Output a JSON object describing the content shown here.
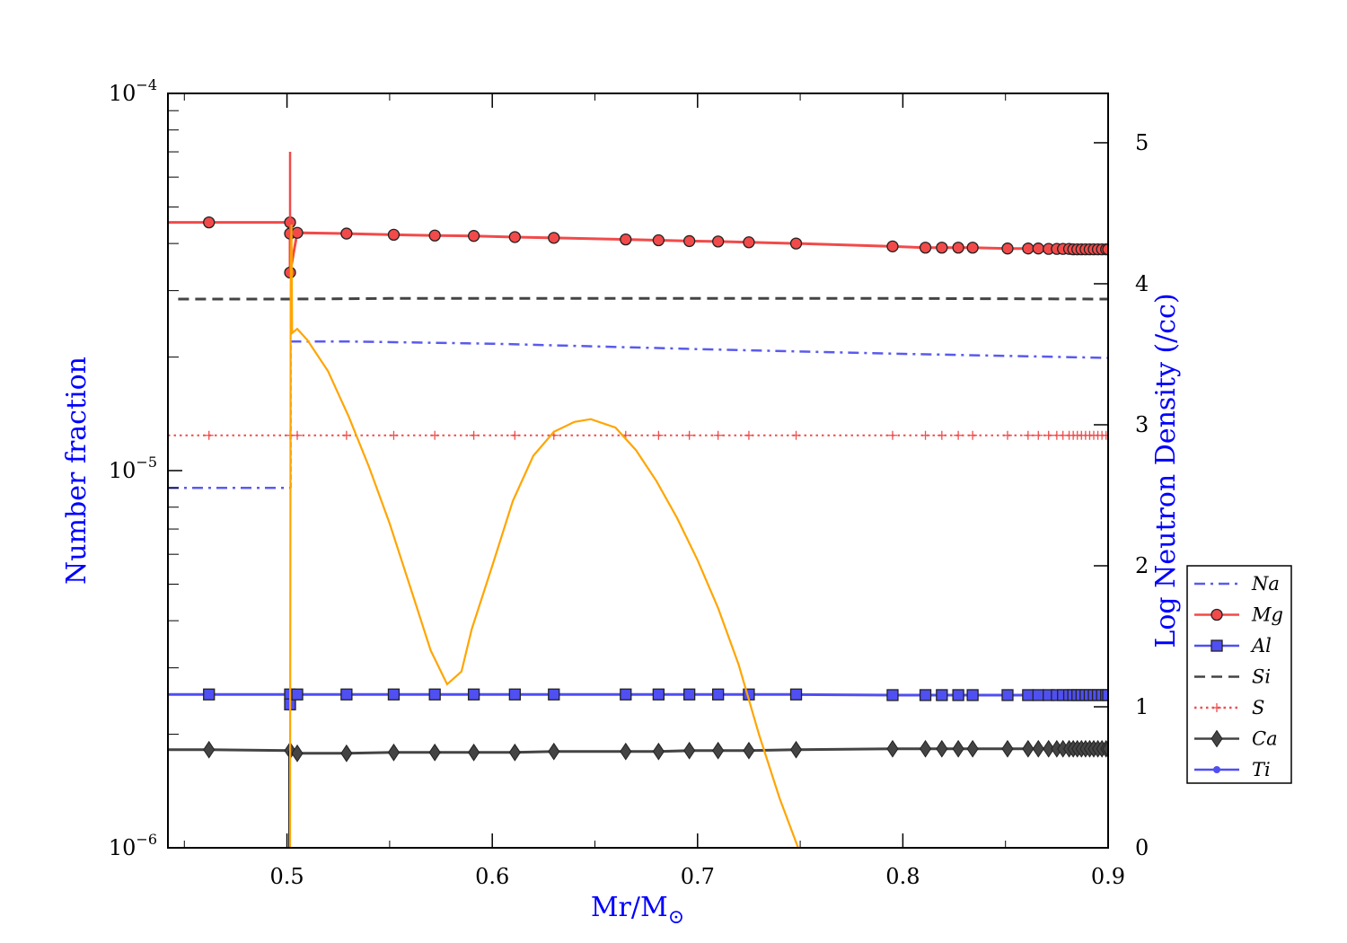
{
  "chart_data": {
    "type": "line",
    "xlabel": "Mr/M",
    "xlabel_symbol": "⊙",
    "ylabel": "Number fraction",
    "y2label": "Log Neutron Density (/cc)",
    "xlim": [
      0.442,
      0.9
    ],
    "ylim": [
      1e-06,
      0.0001
    ],
    "y_scale": "log",
    "y2lim": [
      0,
      5.35
    ],
    "x_ticks": [
      "0.5",
      "0.6",
      "0.7",
      "0.8",
      "0.9"
    ],
    "y_ticks": [
      {
        "base": "10",
        "exp": "−4"
      },
      {
        "base": "10",
        "exp": "−5"
      },
      {
        "base": "10",
        "exp": "−6"
      }
    ],
    "y2_ticks": [
      "0",
      "1",
      "2",
      "3",
      "4",
      "5"
    ],
    "grid": false,
    "legend_position": "right",
    "colors": {
      "red": "#f24a4a",
      "blue": "#4f4ff2",
      "gray": "#444444",
      "orange": "#ffa500",
      "label_blue": "#0000ff"
    },
    "series": [
      {
        "name": "Na",
        "style": "dashdot",
        "color": "#5a5aee",
        "segments": [
          [
            [
              0.442,
              9e-06
            ],
            [
              0.5015,
              9e-06
            ]
          ],
          [
            [
              0.5017,
              2.2e-05
            ],
            [
              0.53,
              2.2e-05
            ],
            [
              0.6,
              2.17e-05
            ],
            [
              0.7,
              2.1e-05
            ],
            [
              0.8,
              2.04e-05
            ],
            [
              0.9,
              1.99e-05
            ]
          ]
        ]
      },
      {
        "name": "Mg",
        "style": "solid-circle",
        "color": "#f24a4a",
        "points": [
          [
            0.442,
            4.55e-05
          ],
          [
            0.462,
            4.55e-05
          ],
          [
            0.5015,
            4.55e-05
          ],
          [
            0.5015,
            4.25e-05
          ],
          [
            0.5015,
            3.35e-05
          ],
          [
            0.505,
            4.27e-05
          ],
          [
            0.529,
            4.25e-05
          ],
          [
            0.552,
            4.22e-05
          ],
          [
            0.572,
            4.2e-05
          ],
          [
            0.591,
            4.19e-05
          ],
          [
            0.611,
            4.16e-05
          ],
          [
            0.63,
            4.14e-05
          ],
          [
            0.665,
            4.1e-05
          ],
          [
            0.681,
            4.08e-05
          ],
          [
            0.696,
            4.06e-05
          ],
          [
            0.71,
            4.05e-05
          ],
          [
            0.725,
            4.03e-05
          ],
          [
            0.748,
            4e-05
          ],
          [
            0.795,
            3.93e-05
          ],
          [
            0.811,
            3.9e-05
          ],
          [
            0.819,
            3.9e-05
          ],
          [
            0.827,
            3.9e-05
          ],
          [
            0.834,
            3.9e-05
          ],
          [
            0.851,
            3.88e-05
          ],
          [
            0.861,
            3.88e-05
          ],
          [
            0.866,
            3.88e-05
          ],
          [
            0.871,
            3.87e-05
          ],
          [
            0.875,
            3.87e-05
          ],
          [
            0.878,
            3.87e-05
          ],
          [
            0.881,
            3.87e-05
          ],
          [
            0.883,
            3.86e-05
          ],
          [
            0.885,
            3.86e-05
          ],
          [
            0.887,
            3.86e-05
          ],
          [
            0.889,
            3.86e-05
          ],
          [
            0.891,
            3.86e-05
          ],
          [
            0.893,
            3.86e-05
          ],
          [
            0.895,
            3.86e-05
          ],
          [
            0.897,
            3.86e-05
          ],
          [
            0.899,
            3.86e-05
          ],
          [
            0.9,
            3.86e-05
          ]
        ]
      },
      {
        "name": "Al",
        "style": "solid-square",
        "color": "#4f4ff2",
        "points": [
          [
            0.442,
            2.55e-06
          ],
          [
            0.462,
            2.55e-06
          ],
          [
            0.5015,
            2.55e-06
          ],
          [
            0.5015,
            2.4e-06
          ],
          [
            0.505,
            2.55e-06
          ],
          [
            0.529,
            2.55e-06
          ],
          [
            0.552,
            2.55e-06
          ],
          [
            0.572,
            2.55e-06
          ],
          [
            0.591,
            2.55e-06
          ],
          [
            0.611,
            2.55e-06
          ],
          [
            0.63,
            2.55e-06
          ],
          [
            0.665,
            2.55e-06
          ],
          [
            0.681,
            2.55e-06
          ],
          [
            0.696,
            2.55e-06
          ],
          [
            0.71,
            2.55e-06
          ],
          [
            0.725,
            2.55e-06
          ],
          [
            0.748,
            2.55e-06
          ],
          [
            0.795,
            2.54e-06
          ],
          [
            0.811,
            2.54e-06
          ],
          [
            0.819,
            2.54e-06
          ],
          [
            0.827,
            2.54e-06
          ],
          [
            0.834,
            2.54e-06
          ],
          [
            0.851,
            2.54e-06
          ],
          [
            0.861,
            2.54e-06
          ],
          [
            0.866,
            2.54e-06
          ],
          [
            0.871,
            2.54e-06
          ],
          [
            0.875,
            2.54e-06
          ],
          [
            0.878,
            2.54e-06
          ],
          [
            0.881,
            2.54e-06
          ],
          [
            0.883,
            2.54e-06
          ],
          [
            0.885,
            2.54e-06
          ],
          [
            0.887,
            2.54e-06
          ],
          [
            0.889,
            2.54e-06
          ],
          [
            0.891,
            2.54e-06
          ],
          [
            0.893,
            2.54e-06
          ],
          [
            0.895,
            2.54e-06
          ],
          [
            0.897,
            2.54e-06
          ],
          [
            0.899,
            2.54e-06
          ],
          [
            0.9,
            2.54e-06
          ]
        ]
      },
      {
        "name": "Si",
        "style": "dashed",
        "color": "#444444",
        "points": [
          [
            0.447,
            2.85e-05
          ],
          [
            0.5,
            2.85e-05
          ],
          [
            0.55,
            2.86e-05
          ],
          [
            0.6,
            2.86e-05
          ],
          [
            0.7,
            2.86e-05
          ],
          [
            0.8,
            2.86e-05
          ],
          [
            0.9,
            2.85e-05
          ]
        ]
      },
      {
        "name": "S",
        "style": "dotted-plus",
        "color": "#f24a4a",
        "points": [
          [
            0.442,
            1.24e-05
          ],
          [
            0.462,
            1.24e-05
          ],
          [
            0.5015,
            1.24e-05
          ],
          [
            0.505,
            1.24e-05
          ],
          [
            0.529,
            1.24e-05
          ],
          [
            0.552,
            1.24e-05
          ],
          [
            0.572,
            1.24e-05
          ],
          [
            0.591,
            1.24e-05
          ],
          [
            0.611,
            1.24e-05
          ],
          [
            0.63,
            1.24e-05
          ],
          [
            0.665,
            1.24e-05
          ],
          [
            0.681,
            1.24e-05
          ],
          [
            0.696,
            1.24e-05
          ],
          [
            0.71,
            1.24e-05
          ],
          [
            0.725,
            1.24e-05
          ],
          [
            0.748,
            1.24e-05
          ],
          [
            0.795,
            1.24e-05
          ],
          [
            0.811,
            1.24e-05
          ],
          [
            0.819,
            1.24e-05
          ],
          [
            0.827,
            1.24e-05
          ],
          [
            0.834,
            1.24e-05
          ],
          [
            0.851,
            1.24e-05
          ],
          [
            0.861,
            1.24e-05
          ],
          [
            0.866,
            1.24e-05
          ],
          [
            0.871,
            1.24e-05
          ],
          [
            0.875,
            1.24e-05
          ],
          [
            0.878,
            1.24e-05
          ],
          [
            0.881,
            1.24e-05
          ],
          [
            0.883,
            1.24e-05
          ],
          [
            0.885,
            1.24e-05
          ],
          [
            0.887,
            1.24e-05
          ],
          [
            0.889,
            1.24e-05
          ],
          [
            0.891,
            1.24e-05
          ],
          [
            0.893,
            1.24e-05
          ],
          [
            0.895,
            1.24e-05
          ],
          [
            0.897,
            1.24e-05
          ],
          [
            0.899,
            1.24e-05
          ],
          [
            0.9,
            1.24e-05
          ]
        ]
      },
      {
        "name": "Ca",
        "style": "solid-diamond",
        "color": "#444444",
        "points": [
          [
            0.442,
            1.82e-06
          ],
          [
            0.462,
            1.82e-06
          ],
          [
            0.5015,
            1.81e-06
          ],
          [
            0.505,
            1.78e-06
          ],
          [
            0.529,
            1.78e-06
          ],
          [
            0.552,
            1.79e-06
          ],
          [
            0.572,
            1.79e-06
          ],
          [
            0.591,
            1.79e-06
          ],
          [
            0.611,
            1.79e-06
          ],
          [
            0.63,
            1.8e-06
          ],
          [
            0.665,
            1.8e-06
          ],
          [
            0.681,
            1.8e-06
          ],
          [
            0.696,
            1.81e-06
          ],
          [
            0.71,
            1.81e-06
          ],
          [
            0.725,
            1.81e-06
          ],
          [
            0.748,
            1.82e-06
          ],
          [
            0.795,
            1.83e-06
          ],
          [
            0.811,
            1.83e-06
          ],
          [
            0.819,
            1.83e-06
          ],
          [
            0.827,
            1.83e-06
          ],
          [
            0.834,
            1.83e-06
          ],
          [
            0.851,
            1.83e-06
          ],
          [
            0.861,
            1.83e-06
          ],
          [
            0.866,
            1.83e-06
          ],
          [
            0.871,
            1.83e-06
          ],
          [
            0.875,
            1.83e-06
          ],
          [
            0.878,
            1.83e-06
          ],
          [
            0.881,
            1.83e-06
          ],
          [
            0.883,
            1.83e-06
          ],
          [
            0.885,
            1.83e-06
          ],
          [
            0.887,
            1.83e-06
          ],
          [
            0.889,
            1.83e-06
          ],
          [
            0.891,
            1.83e-06
          ],
          [
            0.893,
            1.83e-06
          ],
          [
            0.895,
            1.83e-06
          ],
          [
            0.897,
            1.83e-06
          ],
          [
            0.899,
            1.83e-06
          ],
          [
            0.9,
            1.83e-06
          ]
        ]
      },
      {
        "name": "Ti",
        "style": "solid-dot",
        "color": "#4f4ff2",
        "points": []
      }
    ],
    "neutron_density": {
      "axis": "right",
      "color": "#ffa500",
      "points": [
        [
          0.5015,
          0.0
        ],
        [
          0.5018,
          4.0
        ],
        [
          0.5022,
          4.42
        ],
        [
          0.5025,
          3.65
        ],
        [
          0.505,
          3.68
        ],
        [
          0.51,
          3.6
        ],
        [
          0.52,
          3.38
        ],
        [
          0.53,
          3.06
        ],
        [
          0.54,
          2.7
        ],
        [
          0.55,
          2.3
        ],
        [
          0.56,
          1.85
        ],
        [
          0.57,
          1.4
        ],
        [
          0.578,
          1.16
        ],
        [
          0.585,
          1.25
        ],
        [
          0.59,
          1.55
        ],
        [
          0.6,
          2.0
        ],
        [
          0.61,
          2.46
        ],
        [
          0.62,
          2.78
        ],
        [
          0.63,
          2.95
        ],
        [
          0.64,
          3.02
        ],
        [
          0.648,
          3.04
        ],
        [
          0.66,
          2.98
        ],
        [
          0.67,
          2.82
        ],
        [
          0.68,
          2.6
        ],
        [
          0.69,
          2.34
        ],
        [
          0.7,
          2.04
        ],
        [
          0.71,
          1.7
        ],
        [
          0.72,
          1.3
        ],
        [
          0.73,
          0.8
        ],
        [
          0.74,
          0.35
        ],
        [
          0.749,
          0.0
        ]
      ]
    }
  }
}
